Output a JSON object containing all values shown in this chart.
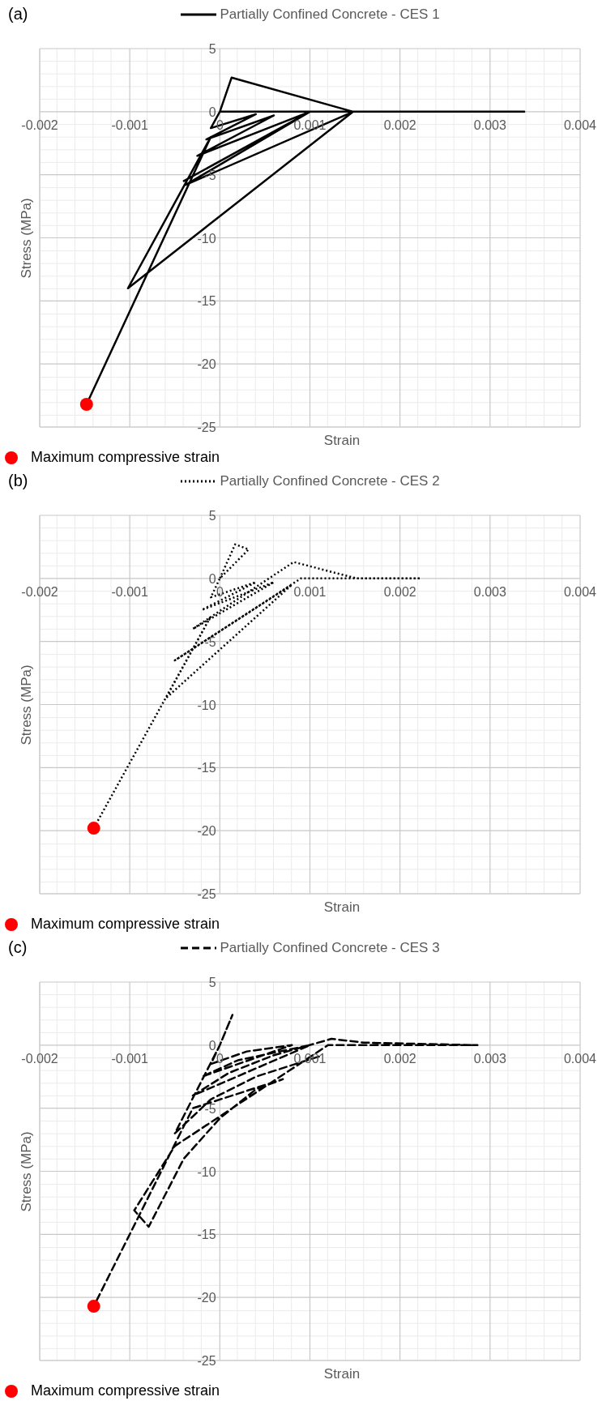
{
  "chart_data": [
    {
      "type": "line",
      "title": "(a)",
      "xlabel": "Strain",
      "ylabel": "Stress (MPa)",
      "xlim": [
        -0.002,
        0.004
      ],
      "xticks": [
        -0.002,
        -0.001,
        0,
        0.001,
        0.002,
        0.003,
        0.004
      ],
      "ylim": [
        -25,
        5
      ],
      "yticks": [
        -25,
        -20,
        -15,
        -10,
        -5,
        0,
        5
      ],
      "grid": true,
      "legend": "top",
      "series": [
        {
          "name": "Partially Confined Concrete - CES 1",
          "type": "line",
          "color": "#000000",
          "line_style": "solid",
          "x": [
            0,
            0.00013,
            0.00148,
            0.00338,
            0,
            -0.0001,
            0.0004,
            -0.00015,
            0.0006,
            -0.00025,
            0.001,
            -0.0004,
            0.001,
            -0.00038,
            0.00148,
            -0.00102,
            -0.0001,
            -0.00148
          ],
          "values": [
            0,
            2.7,
            0,
            0,
            0,
            -1.3,
            -0.2,
            -2.2,
            -0.3,
            -3.5,
            0,
            -5.5,
            0,
            -5.8,
            0,
            -14.0,
            -2.0,
            -23.2
          ]
        },
        {
          "name": "Maximum compressive strain",
          "type": "scatter",
          "color": "#ff0000",
          "marker": "circle",
          "x": [
            -0.00148
          ],
          "values": [
            -23.2
          ]
        }
      ]
    },
    {
      "type": "line",
      "title": "(b)",
      "xlabel": "Strain",
      "ylabel": "Stress (MPa)",
      "xlim": [
        -0.002,
        0.004
      ],
      "xticks": [
        -0.002,
        -0.001,
        0,
        0.001,
        0.002,
        0.003,
        0.004
      ],
      "ylim": [
        -25,
        5
      ],
      "yticks": [
        -25,
        -20,
        -15,
        -10,
        -5,
        0,
        5
      ],
      "grid": true,
      "legend": "top",
      "series": [
        {
          "name": "Partially Confined Concrete - CES 2",
          "type": "line",
          "color": "#000000",
          "line_style": "dotted",
          "x": [
            0,
            0.00017,
            0.00032,
            0,
            -0.0001,
            0.0004,
            -0.0002,
            0.0006,
            -0.0003,
            0.00082,
            0.00152,
            0.00223,
            0.0009,
            -0.0005,
            0.0008,
            -0.0006,
            -0.0001,
            -0.0014
          ],
          "values": [
            0,
            2.7,
            2.3,
            0,
            -1.5,
            -0.3,
            -2.5,
            -0.3,
            -4.0,
            1.3,
            0,
            0,
            0,
            -6.5,
            -0.5,
            -9.5,
            -3.0,
            -19.8
          ]
        },
        {
          "name": "Maximum compressive strain",
          "type": "scatter",
          "color": "#ff0000",
          "marker": "circle",
          "x": [
            -0.0014
          ],
          "values": [
            -19.8
          ]
        }
      ]
    },
    {
      "type": "line",
      "title": "(c)",
      "xlabel": "Strain",
      "ylabel": "Stress (MPa)",
      "xlim": [
        -0.002,
        0.004
      ],
      "xticks": [
        -0.002,
        -0.001,
        0,
        0.001,
        0.002,
        0.003,
        0.004
      ],
      "ylim": [
        -25,
        5
      ],
      "yticks": [
        -25,
        -20,
        -15,
        -10,
        -5,
        0,
        5
      ],
      "grid": true,
      "legend": "top",
      "series": [
        {
          "name": "Partially Confined Concrete - CES 3",
          "type": "line",
          "color": "#000000",
          "line_style": "dashed",
          "x": [
            0.0011,
            0.0004,
            -0.0001,
            -0.0005,
            0,
            0.00014,
            0,
            -0.0001,
            0.0003,
            0.0008,
            -0.0002,
            0.0002,
            0.001,
            -0.0003,
            0.0001,
            0.0006,
            0.00124,
            0.0016,
            0.00286,
            0.0012,
            -0.0005,
            -0.00095,
            -0.00079,
            -0.0004,
            0,
            0.0004,
            0.0007,
            -0.0003,
            -0.0014
          ],
          "values": [
            -0.9,
            -2.5,
            -4.3,
            -7.0,
            0,
            2.4,
            0,
            -1.5,
            -0.5,
            0,
            -2.5,
            -1.2,
            0,
            -4.0,
            -2.2,
            -0.8,
            0.5,
            0.2,
            0,
            0,
            -8.0,
            -13.1,
            -14.4,
            -9.0,
            -5.8,
            -3.5,
            -2.7,
            -5.0,
            -20.7
          ]
        },
        {
          "name": "Maximum compressive strain",
          "type": "scatter",
          "color": "#ff0000",
          "marker": "circle",
          "x": [
            -0.0014
          ],
          "values": [
            -20.7
          ]
        }
      ]
    }
  ]
}
